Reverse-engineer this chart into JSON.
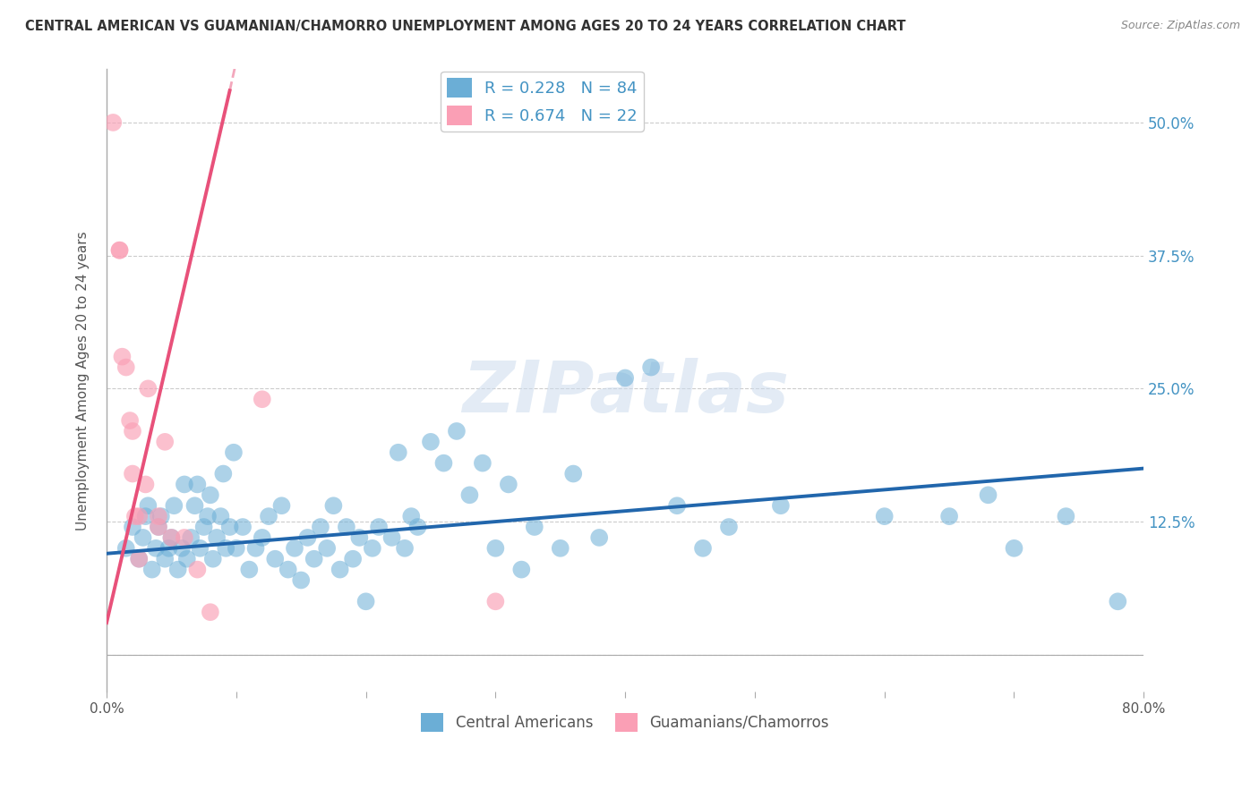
{
  "title": "CENTRAL AMERICAN VS GUAMANIAN/CHAMORRO UNEMPLOYMENT AMONG AGES 20 TO 24 YEARS CORRELATION CHART",
  "source": "Source: ZipAtlas.com",
  "ylabel": "Unemployment Among Ages 20 to 24 years",
  "xlim": [
    0,
    80
  ],
  "ylim": [
    -3.5,
    55
  ],
  "xticks": [
    0,
    10,
    20,
    30,
    40,
    50,
    60,
    70,
    80
  ],
  "xticklabels": [
    "0.0%",
    "",
    "",
    "",
    "",
    "",
    "",
    "",
    "80.0%"
  ],
  "yticks": [
    0,
    12.5,
    25,
    37.5,
    50
  ],
  "yticklabels": [
    "",
    "12.5%",
    "25.0%",
    "37.5%",
    "50.0%"
  ],
  "legend_r1": "R = 0.228",
  "legend_n1": "N = 84",
  "legend_r2": "R = 0.674",
  "legend_n2": "N = 22",
  "color_blue": "#6baed6",
  "color_pink": "#fa9fb5",
  "color_blue_line": "#2166ac",
  "color_pink_line": "#e8517a",
  "color_text_blue": "#4393c3",
  "watermark": "ZIPatlas",
  "blue_scatter_x": [
    1.5,
    2.0,
    2.5,
    2.8,
    3.0,
    3.2,
    3.5,
    3.8,
    4.0,
    4.2,
    4.5,
    4.8,
    5.0,
    5.2,
    5.5,
    5.8,
    6.0,
    6.2,
    6.5,
    6.8,
    7.0,
    7.2,
    7.5,
    7.8,
    8.0,
    8.2,
    8.5,
    8.8,
    9.0,
    9.2,
    9.5,
    9.8,
    10.0,
    10.5,
    11.0,
    11.5,
    12.0,
    12.5,
    13.0,
    13.5,
    14.0,
    14.5,
    15.0,
    15.5,
    16.0,
    16.5,
    17.0,
    17.5,
    18.0,
    18.5,
    19.0,
    19.5,
    20.0,
    20.5,
    21.0,
    22.0,
    22.5,
    23.0,
    23.5,
    24.0,
    25.0,
    26.0,
    27.0,
    28.0,
    29.0,
    30.0,
    31.0,
    32.0,
    33.0,
    35.0,
    36.0,
    38.0,
    40.0,
    42.0,
    44.0,
    46.0,
    48.0,
    52.0,
    60.0,
    65.0,
    68.0,
    70.0,
    74.0,
    78.0
  ],
  "blue_scatter_y": [
    10.0,
    12.0,
    9.0,
    11.0,
    13.0,
    14.0,
    8.0,
    10.0,
    12.0,
    13.0,
    9.0,
    10.0,
    11.0,
    14.0,
    8.0,
    10.0,
    16.0,
    9.0,
    11.0,
    14.0,
    16.0,
    10.0,
    12.0,
    13.0,
    15.0,
    9.0,
    11.0,
    13.0,
    17.0,
    10.0,
    12.0,
    19.0,
    10.0,
    12.0,
    8.0,
    10.0,
    11.0,
    13.0,
    9.0,
    14.0,
    8.0,
    10.0,
    7.0,
    11.0,
    9.0,
    12.0,
    10.0,
    14.0,
    8.0,
    12.0,
    9.0,
    11.0,
    5.0,
    10.0,
    12.0,
    11.0,
    19.0,
    10.0,
    13.0,
    12.0,
    20.0,
    18.0,
    21.0,
    15.0,
    18.0,
    10.0,
    16.0,
    8.0,
    12.0,
    10.0,
    17.0,
    11.0,
    26.0,
    27.0,
    14.0,
    10.0,
    12.0,
    14.0,
    13.0,
    13.0,
    15.0,
    10.0,
    13.0,
    5.0
  ],
  "pink_scatter_x": [
    0.5,
    1.0,
    1.0,
    1.2,
    1.5,
    1.8,
    2.0,
    2.0,
    2.2,
    2.5,
    2.5,
    3.0,
    3.2,
    4.0,
    4.0,
    4.5,
    5.0,
    6.0,
    7.0,
    8.0,
    12.0,
    30.0
  ],
  "pink_scatter_y": [
    50.0,
    38.0,
    38.0,
    28.0,
    27.0,
    22.0,
    21.0,
    17.0,
    13.0,
    13.0,
    9.0,
    16.0,
    25.0,
    12.0,
    13.0,
    20.0,
    11.0,
    11.0,
    8.0,
    4.0,
    24.0,
    5.0
  ],
  "blue_line_x": [
    0,
    80
  ],
  "blue_line_y": [
    9.5,
    17.5
  ],
  "pink_line_x": [
    0,
    9.5
  ],
  "pink_line_y": [
    3.0,
    53.0
  ]
}
